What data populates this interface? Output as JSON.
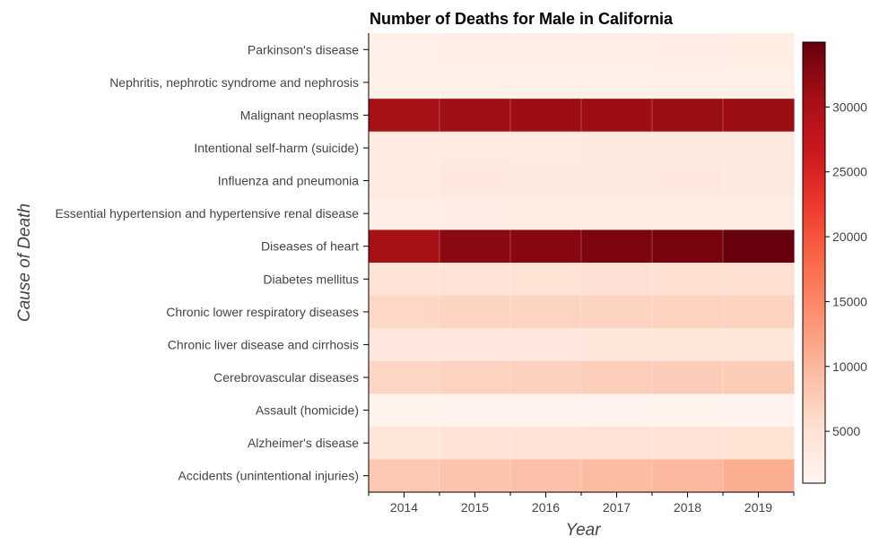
{
  "chart_data": {
    "type": "heatmap",
    "title": "Number of Deaths for Male in California",
    "xlabel": "Year",
    "ylabel": "Cause of Death",
    "x": [
      "2014",
      "2015",
      "2016",
      "2017",
      "2018",
      "2019"
    ],
    "y": [
      "Parkinson's disease",
      "Nephritis, nephrotic syndrome and nephrosis",
      "Malignant neoplasms",
      "Intentional self-harm (suicide)",
      "Influenza and pneumonia",
      "Essential hypertension and hypertensive renal disease",
      "Diseases of heart",
      "Diabetes mellitus",
      "Chronic lower respiratory diseases",
      "Chronic liver disease and cirrhosis",
      "Cerebrovascular diseases",
      "Assault (homicide)",
      "Alzheimer's disease",
      "Accidents (unintentional injuries)"
    ],
    "values": [
      [
        2300,
        2400,
        2400,
        2500,
        2600,
        2700
      ],
      [
        2000,
        2100,
        2100,
        2100,
        2200,
        2100
      ],
      [
        30500,
        31000,
        31200,
        31200,
        31400,
        31300
      ],
      [
        3100,
        3300,
        3300,
        3400,
        3500,
        3400
      ],
      [
        3300,
        3600,
        3400,
        3500,
        3800,
        3500
      ],
      [
        2400,
        2600,
        2700,
        2800,
        2900,
        2900
      ],
      [
        30500,
        32500,
        32800,
        33500,
        33900,
        35000
      ],
      [
        4600,
        4800,
        4900,
        5000,
        5100,
        5200
      ],
      [
        6300,
        6600,
        6600,
        6700,
        6800,
        6800
      ],
      [
        3600,
        3800,
        3900,
        4000,
        4000,
        4100
      ],
      [
        6500,
        6900,
        7000,
        7300,
        7500,
        7600
      ],
      [
        1500,
        1600,
        1600,
        1600,
        1500,
        1400
      ],
      [
        4200,
        4500,
        4600,
        4800,
        4800,
        4900
      ],
      [
        8000,
        8500,
        8900,
        9400,
        9800,
        10800
      ]
    ],
    "colorbar": {
      "range": [
        1000,
        35000
      ],
      "ticks": [
        5000,
        10000,
        15000,
        20000,
        25000,
        30000
      ],
      "colormap": "Reds"
    },
    "grid": false,
    "legend": "colorbar right"
  }
}
